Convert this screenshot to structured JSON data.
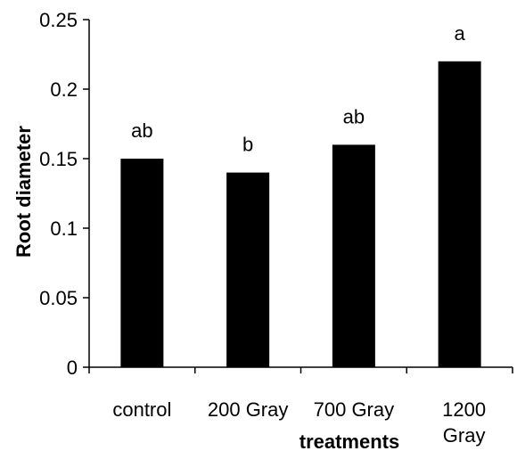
{
  "chart_data": {
    "type": "bar",
    "title": "",
    "xlabel": "treatments",
    "ylabel": "Root diameter",
    "ylim": [
      0,
      0.25
    ],
    "yticks": [
      "0",
      "0.05",
      "0.1",
      "0.15",
      "0.2",
      "0.25"
    ],
    "ytick_values": [
      0,
      0.05,
      0.1,
      0.15,
      0.2,
      0.25
    ],
    "categories": [
      "control",
      "200 Gray",
      "700 Gray",
      "1200 Gray"
    ],
    "category_lines": [
      [
        "control"
      ],
      [
        "200 Gray"
      ],
      [
        "700 Gray"
      ],
      [
        "1200",
        "Gray"
      ]
    ],
    "values": [
      0.15,
      0.14,
      0.16,
      0.22
    ],
    "labels": [
      "ab",
      "b",
      "ab",
      "a"
    ],
    "grid": false,
    "legend": "none",
    "bar_color": "#000000"
  }
}
